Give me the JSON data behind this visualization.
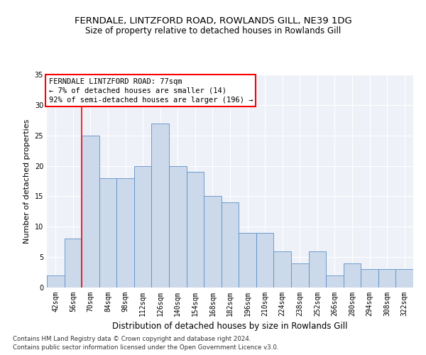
{
  "title": "FERNDALE, LINTZFORD ROAD, ROWLANDS GILL, NE39 1DG",
  "subtitle": "Size of property relative to detached houses in Rowlands Gill",
  "xlabel": "Distribution of detached houses by size in Rowlands Gill",
  "ylabel": "Number of detached properties",
  "footnote1": "Contains HM Land Registry data © Crown copyright and database right 2024.",
  "footnote2": "Contains public sector information licensed under the Open Government Licence v3.0.",
  "annotation_line1": "FERNDALE LINTZFORD ROAD: 77sqm",
  "annotation_line2": "← 7% of detached houses are smaller (14)",
  "annotation_line3": "92% of semi-detached houses are larger (196) →",
  "bar_labels": [
    "42sqm",
    "56sqm",
    "70sqm",
    "84sqm",
    "98sqm",
    "112sqm",
    "126sqm",
    "140sqm",
    "154sqm",
    "168sqm",
    "182sqm",
    "196sqm",
    "210sqm",
    "224sqm",
    "238sqm",
    "252sqm",
    "266sqm",
    "280sqm",
    "294sqm",
    "308sqm",
    "322sqm"
  ],
  "bar_values": [
    2,
    8,
    25,
    18,
    18,
    20,
    27,
    20,
    19,
    15,
    14,
    9,
    9,
    6,
    4,
    6,
    2,
    4,
    3,
    3,
    3
  ],
  "bar_color": "#ccd9ea",
  "bar_edge_color": "#5b8fc9",
  "vline_x": 2.0,
  "vline_color": "red",
  "ylim": [
    0,
    35
  ],
  "yticks": [
    0,
    5,
    10,
    15,
    20,
    25,
    30,
    35
  ],
  "bg_color": "#eef2f8",
  "grid_color": "#ffffff",
  "title_fontsize": 9.5,
  "subtitle_fontsize": 8.5,
  "ylabel_fontsize": 8,
  "xlabel_fontsize": 8.5,
  "tick_fontsize": 7,
  "annot_fontsize": 7.5,
  "footnote_fontsize": 6.2
}
